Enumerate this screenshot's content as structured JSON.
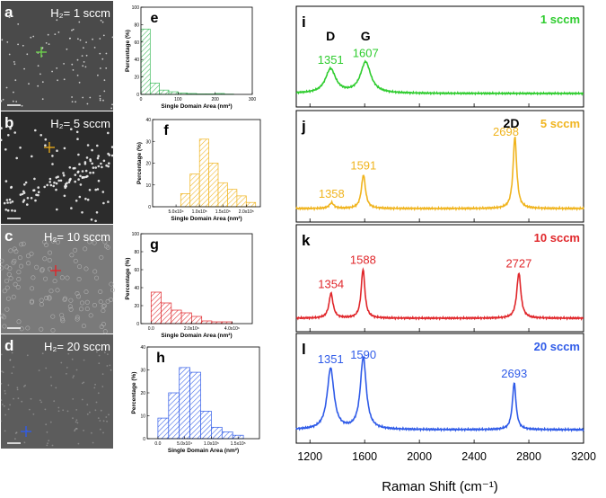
{
  "sem_panels": [
    {
      "letter": "a",
      "condition": "H₂= 1 sccm",
      "cross_color": "#6bd04a"
    },
    {
      "letter": "b",
      "condition": "H₂= 5 sccm",
      "cross_color": "#e0a41a"
    },
    {
      "letter": "c",
      "condition": "H₂= 10 sccm",
      "cross_color": "#e0262a"
    },
    {
      "letter": "d",
      "condition": "H₂= 20 sccm",
      "cross_color": "#2f5be8"
    }
  ],
  "chart_data": [
    {
      "type": "bar",
      "panel": "e",
      "color": "#3dbb5b",
      "xlabel": "Single Domain Area (nm²)",
      "ylabel": "Percentage (%)",
      "xlim": [
        0,
        300
      ],
      "ylim": [
        0,
        100
      ],
      "xticks": [
        0,
        100,
        200,
        300
      ],
      "xticklabels": [
        "0",
        "100",
        "200",
        "300"
      ],
      "yticks": [
        0,
        20,
        40,
        60,
        80,
        100
      ],
      "bins": [
        [
          0,
          25
        ],
        [
          25,
          50
        ],
        [
          50,
          75
        ],
        [
          75,
          100
        ],
        [
          100,
          125
        ],
        [
          125,
          150
        ],
        [
          150,
          175
        ],
        [
          175,
          200
        ],
        [
          200,
          225
        ],
        [
          225,
          250
        ]
      ],
      "values": [
        75,
        13,
        5,
        3,
        1.5,
        1,
        0.5,
        0.5,
        1,
        0.3
      ]
    },
    {
      "type": "bar",
      "panel": "f",
      "color": "#f0b41e",
      "xlabel": "Single Domain Area (nm²)",
      "ylabel": "Percentage (%)",
      "xlim": [
        0,
        230000
      ],
      "ylim": [
        0,
        40
      ],
      "xticks": [
        50000,
        100000,
        150000,
        200000
      ],
      "xticklabels": [
        "5.0x10⁴",
        "1.0x10⁵",
        "1.5x10⁵",
        "2.0x10⁵"
      ],
      "yticks": [
        0,
        10,
        20,
        30,
        40
      ],
      "bins": [
        [
          60000,
          80000
        ],
        [
          80000,
          100000
        ],
        [
          100000,
          120000
        ],
        [
          120000,
          140000
        ],
        [
          140000,
          160000
        ],
        [
          160000,
          180000
        ],
        [
          180000,
          200000
        ],
        [
          200000,
          220000
        ]
      ],
      "values": [
        6,
        15,
        31,
        20,
        11,
        8,
        5,
        2
      ]
    },
    {
      "type": "bar",
      "panel": "g",
      "color": "#e0262a",
      "xlabel": "Single Domain Area (nm²)",
      "ylabel": "Percentage (%)",
      "xlim": [
        -500000,
        5000000
      ],
      "ylim": [
        0,
        100
      ],
      "xticks": [
        0,
        2000000,
        4000000
      ],
      "xticklabels": [
        "0.0",
        "2.0x10⁶",
        "4.0x10⁶"
      ],
      "yticks": [
        0,
        20,
        40,
        60,
        80,
        100
      ],
      "bins": [
        [
          0,
          500000
        ],
        [
          500000,
          1000000
        ],
        [
          1000000,
          1500000
        ],
        [
          1500000,
          2000000
        ],
        [
          2000000,
          2500000
        ],
        [
          2500000,
          3000000
        ],
        [
          3000000,
          3500000
        ],
        [
          3500000,
          4000000
        ]
      ],
      "values": [
        35,
        23,
        15,
        12,
        8,
        3,
        2,
        2
      ]
    },
    {
      "type": "bar",
      "panel": "h",
      "color": "#2f5be8",
      "xlabel": "Single Domain Area (nm²)",
      "ylabel": "Percentage (%)",
      "xlim": [
        -20000,
        190000
      ],
      "ylim": [
        0,
        40
      ],
      "xticks": [
        0,
        50000,
        100000,
        150000
      ],
      "xticklabels": [
        "0.0",
        "5.0x10⁴",
        "1.0x10⁵",
        "1.5x10⁵"
      ],
      "yticks": [
        0,
        10,
        20,
        30,
        40
      ],
      "bins": [
        [
          0,
          20000
        ],
        [
          20000,
          40000
        ],
        [
          40000,
          60000
        ],
        [
          60000,
          80000
        ],
        [
          80000,
          100000
        ],
        [
          100000,
          120000
        ],
        [
          120000,
          140000
        ],
        [
          140000,
          160000
        ]
      ],
      "values": [
        9,
        20,
        31,
        29,
        12,
        5,
        3,
        1.5
      ]
    },
    {
      "type": "line",
      "panel_set": "raman",
      "xlabel": "Raman Shift (cm⁻¹)",
      "xlim": [
        1100,
        3200
      ],
      "xticks": [
        1200,
        1600,
        2000,
        2400,
        2800,
        3200
      ],
      "series": [
        {
          "panel": "i",
          "name": "1 sccm",
          "color": "#2ecc2e",
          "peaks": [
            {
              "x": 1351,
              "height": 0.35,
              "width": 45
            },
            {
              "x": 1607,
              "height": 0.45,
              "width": 45
            }
          ],
          "peak_labels": [
            "1351",
            "1607"
          ],
          "band_labels": [
            "D",
            "G"
          ]
        },
        {
          "panel": "j",
          "name": "5 sccm",
          "color": "#f0b41e",
          "peaks": [
            {
              "x": 1358,
              "height": 0.07,
              "width": 20
            },
            {
              "x": 1591,
              "height": 0.42,
              "width": 18
            },
            {
              "x": 2698,
              "height": 0.9,
              "width": 16
            }
          ],
          "peak_labels": [
            "1358",
            "1591",
            "2698"
          ],
          "band_labels": [
            "2D"
          ]
        },
        {
          "panel": "k",
          "name": "10 sccm",
          "color": "#e0262a",
          "peaks": [
            {
              "x": 1354,
              "height": 0.33,
              "width": 18
            },
            {
              "x": 1588,
              "height": 0.65,
              "width": 16
            },
            {
              "x": 2727,
              "height": 0.6,
              "width": 18
            }
          ],
          "peak_labels": [
            "1354",
            "1588",
            "2727"
          ]
        },
        {
          "panel": "l",
          "name": "20 sccm",
          "color": "#2f5be8",
          "peaks": [
            {
              "x": 1351,
              "height": 0.78,
              "width": 30
            },
            {
              "x": 1590,
              "height": 0.92,
              "width": 26
            },
            {
              "x": 2693,
              "height": 0.6,
              "width": 16
            }
          ],
          "peak_labels": [
            "1351",
            "1590",
            "2693"
          ]
        }
      ]
    }
  ]
}
